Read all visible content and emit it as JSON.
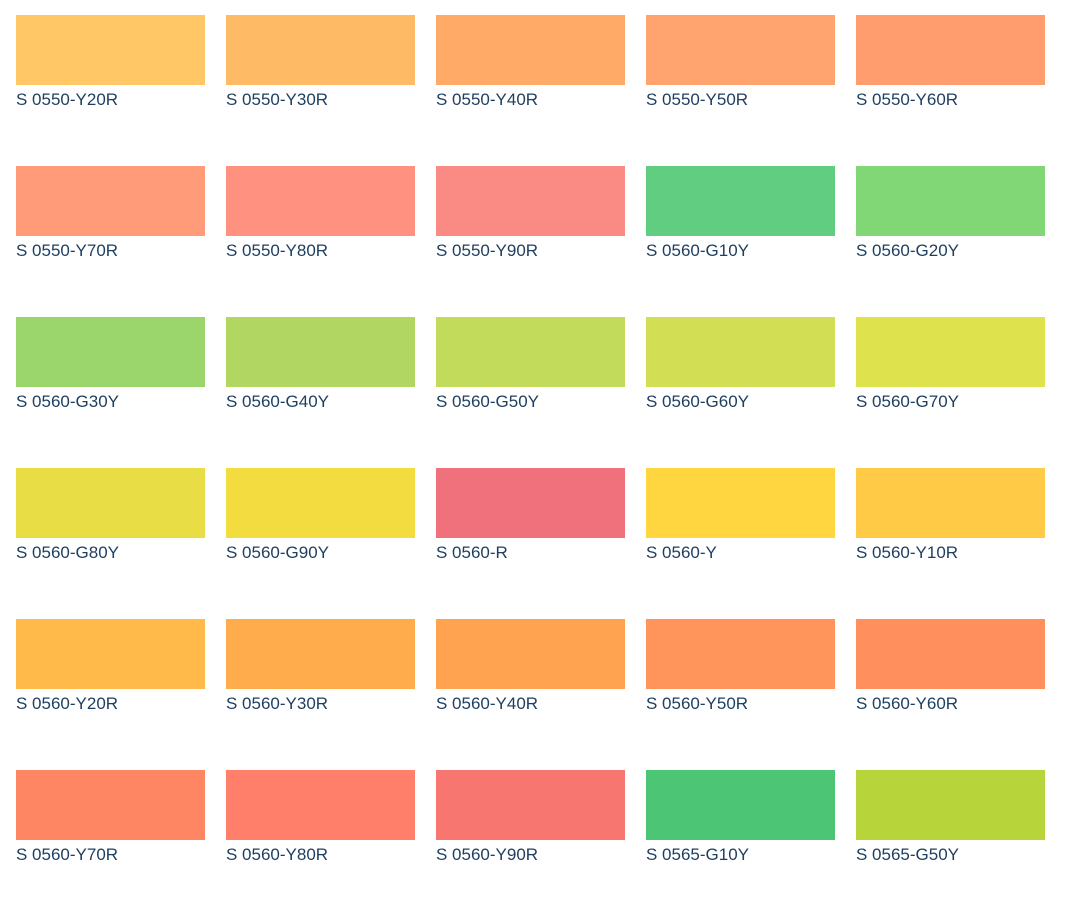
{
  "swatches": [
    {
      "label": "S 0550-Y20R",
      "color": "#FFC766"
    },
    {
      "label": "S 0550-Y30R",
      "color": "#FFBA66"
    },
    {
      "label": "S 0550-Y40R",
      "color": "#FFAA66"
    },
    {
      "label": "S 0550-Y50R",
      "color": "#FFA46E"
    },
    {
      "label": "S 0550-Y60R",
      "color": "#FF9D6F"
    },
    {
      "label": "S 0550-Y70R",
      "color": "#FF9B79"
    },
    {
      "label": "S 0550-Y80R",
      "color": "#FF9181"
    },
    {
      "label": "S 0550-Y90R",
      "color": "#F98B84"
    },
    {
      "label": "S 0560-G10Y",
      "color": "#60CD80"
    },
    {
      "label": "S 0560-G20Y",
      "color": "#81D676"
    },
    {
      "label": "S 0560-G30Y",
      "color": "#9AD66C"
    },
    {
      "label": "S 0560-G40Y",
      "color": "#B1D661"
    },
    {
      "label": "S 0560-G50Y",
      "color": "#C3DB5B"
    },
    {
      "label": "S 0560-G60Y",
      "color": "#D2DE53"
    },
    {
      "label": "S 0560-G70Y",
      "color": "#DEE24C"
    },
    {
      "label": "S 0560-G80Y",
      "color": "#E8DD44"
    },
    {
      "label": "S 0560-G90Y",
      "color": "#F2DC40"
    },
    {
      "label": "S 0560-R",
      "color": "#F0717B"
    },
    {
      "label": "S 0560-Y",
      "color": "#FFD640"
    },
    {
      "label": "S 0560-Y10R",
      "color": "#FFCA45"
    },
    {
      "label": "S 0560-Y20R",
      "color": "#FFBA4A"
    },
    {
      "label": "S 0560-Y30R",
      "color": "#FFAC4D"
    },
    {
      "label": "S 0560-Y40R",
      "color": "#FFA350"
    },
    {
      "label": "S 0560-Y50R",
      "color": "#FF955A"
    },
    {
      "label": "S 0560-Y60R",
      "color": "#FF8F5D"
    },
    {
      "label": "S 0560-Y70R",
      "color": "#FF8662"
    },
    {
      "label": "S 0560-Y80R",
      "color": "#FF7F6B"
    },
    {
      "label": "S 0560-Y90R",
      "color": "#F87670"
    },
    {
      "label": "S 0565-G10Y",
      "color": "#4CC675"
    },
    {
      "label": "S 0565-G50Y",
      "color": "#B8D43B"
    }
  ]
}
